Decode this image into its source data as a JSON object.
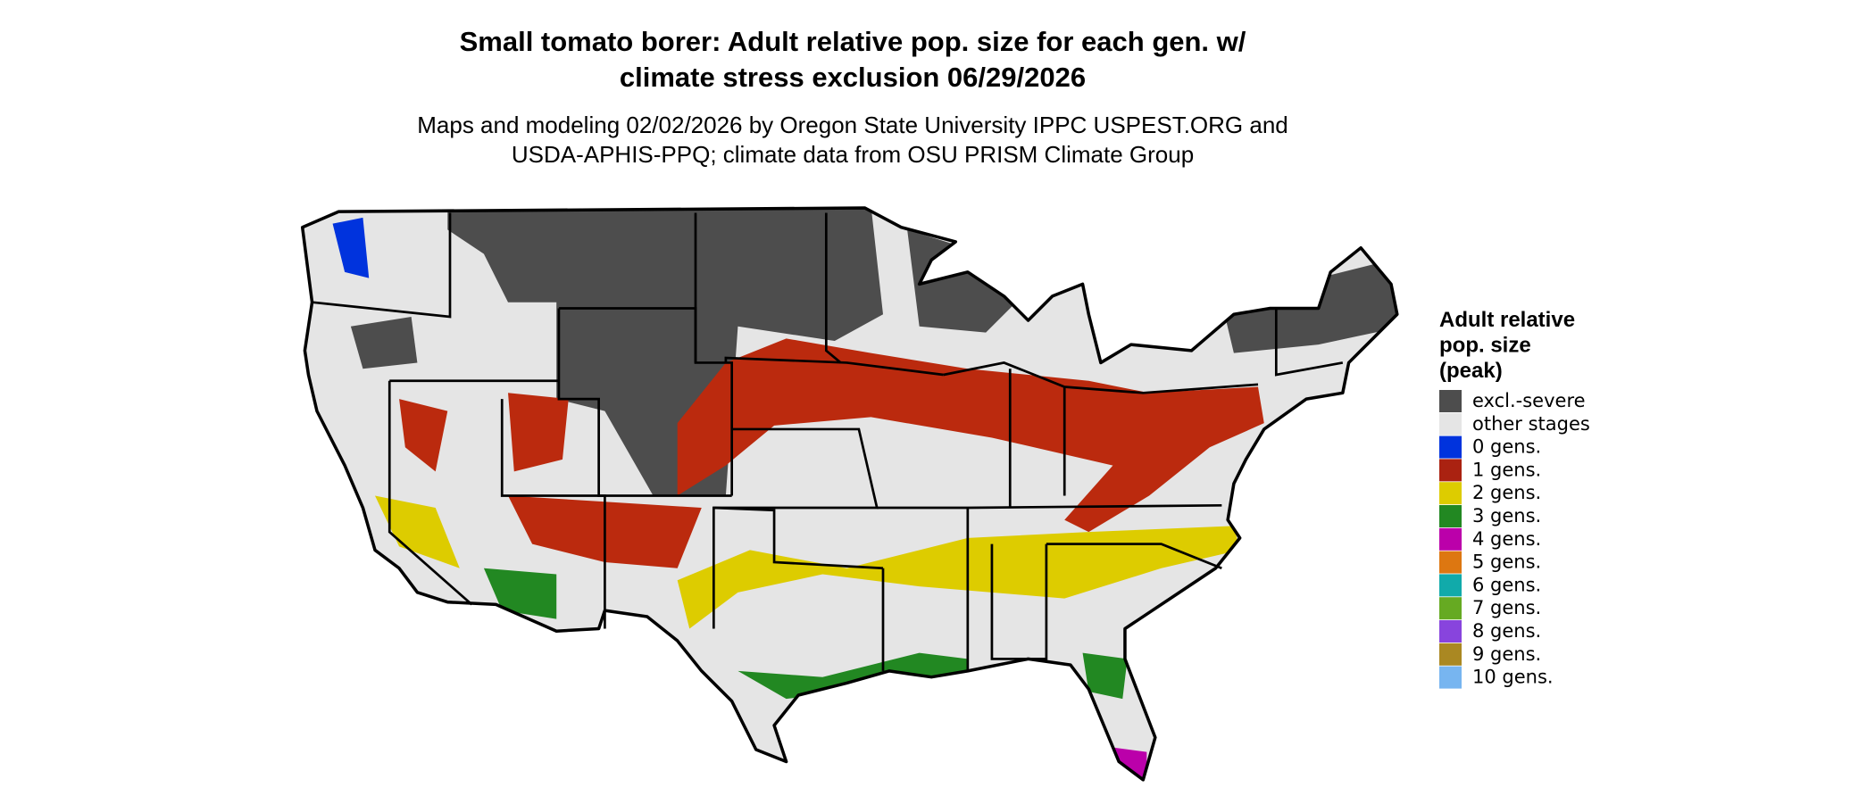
{
  "title_lines": [
    "Small tomato borer: Adult relative pop. size for each gen. w/",
    "climate stress exclusion 06/29/2026"
  ],
  "subtitle_lines": [
    "Maps and modeling 02/02/2026 by Oregon State University IPPC USPEST.ORG and",
    "USDA-APHIS-PPQ; climate data from OSU PRISM Climate Group"
  ],
  "legend": {
    "title_lines": [
      "Adult relative",
      "pop. size",
      "(peak)"
    ],
    "items": [
      {
        "label": "excl.-severe",
        "color": "#4d4d4d"
      },
      {
        "label": "other stages",
        "color": "#e5e5e5"
      },
      {
        "label": "0 gens.",
        "color": "#0033dd"
      },
      {
        "label": "1 gens.",
        "color": "#aa2211"
      },
      {
        "label": "2 gens.",
        "color": "#ddcc00"
      },
      {
        "label": "3 gens.",
        "color": "#228822"
      },
      {
        "label": "4 gens.",
        "color": "#bb00aa"
      },
      {
        "label": "5 gens.",
        "color": "#dd7711"
      },
      {
        "label": "6 gens.",
        "color": "#11aaaa"
      },
      {
        "label": "7 gens.",
        "color": "#66aa22"
      },
      {
        "label": "8 gens.",
        "color": "#8844dd"
      },
      {
        "label": "9 gens.",
        "color": "#aa8822"
      },
      {
        "label": "10 gens.",
        "color": "#77b5f0"
      }
    ]
  }
}
